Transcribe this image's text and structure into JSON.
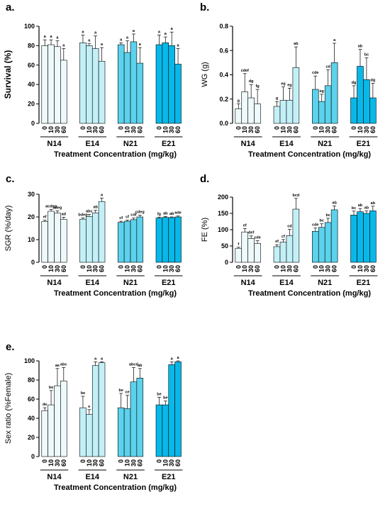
{
  "colors": {
    "N14": "#edf9fb",
    "E14": "#c3f0f7",
    "N21": "#5cd2ec",
    "E21": "#08b8e8",
    "axis": "#000000"
  },
  "chart_data": [
    {
      "type": "bar",
      "panel": "a.",
      "ylabel": "Survival (%)",
      "xlabel": "Treatment Concentration (mg/kg)",
      "ylim": [
        0,
        100
      ],
      "yticks": [
        "0",
        "20",
        "40",
        "60",
        "80",
        "100"
      ],
      "groups": [
        "N14",
        "E14",
        "N21",
        "E21"
      ],
      "categories": [
        "0",
        "10",
        "30",
        "60"
      ],
      "series": [
        {
          "group": "N14",
          "values": [
            80,
            81,
            79,
            65
          ],
          "errors": [
            6,
            5,
            6,
            12
          ],
          "letters": [
            "a",
            "a",
            "a",
            "a"
          ]
        },
        {
          "group": "E14",
          "values": [
            83,
            80,
            77,
            64
          ],
          "errors": [
            8,
            2,
            13,
            14
          ],
          "letters": [
            "a",
            "a",
            "a",
            "a"
          ]
        },
        {
          "group": "N21",
          "values": [
            81,
            73,
            84,
            62
          ],
          "errors": [
            2,
            12,
            8,
            16
          ],
          "letters": [
            "a",
            "a",
            "a",
            "a"
          ]
        },
        {
          "group": "E21",
          "values": [
            81,
            83,
            80,
            61
          ],
          "errors": [
            10,
            6,
            14,
            16
          ],
          "letters": [
            "a",
            "a",
            "a",
            "a"
          ]
        }
      ]
    },
    {
      "type": "bar",
      "panel": "b.",
      "ylabel": "WG (g)",
      "xlabel": "Treatment Concentration (mg/kg)",
      "ylim": [
        0,
        0.8
      ],
      "yticks": [
        "0.0",
        "0.2",
        "0.4",
        "0.6",
        "0.8"
      ],
      "groups": [
        "N14",
        "E14",
        "N21",
        "E21"
      ],
      "categories": [
        "0",
        "10",
        "30",
        "60"
      ],
      "series": [
        {
          "group": "N14",
          "values": [
            0.12,
            0.26,
            0.21,
            0.16
          ],
          "errors": [
            0.04,
            0.15,
            0.11,
            0.12
          ],
          "letters": [
            "g",
            "cdef",
            "dg",
            "fg"
          ]
        },
        {
          "group": "E14",
          "values": [
            0.14,
            0.19,
            0.19,
            0.46
          ],
          "errors": [
            0.04,
            0.11,
            0.1,
            0.17
          ],
          "letters": [
            "g",
            "eg",
            "eg",
            "ab"
          ]
        },
        {
          "group": "N21",
          "values": [
            0.28,
            0.18,
            0.31,
            0.5
          ],
          "errors": [
            0.11,
            0.06,
            0.13,
            0.16
          ],
          "letters": [
            "cde",
            "eg",
            "cd",
            "a"
          ]
        },
        {
          "group": "E21",
          "values": [
            0.21,
            0.47,
            0.36,
            0.21
          ],
          "errors": [
            0.1,
            0.14,
            0.18,
            0.12
          ],
          "letters": [
            "dg",
            "ab",
            "bc",
            "dg"
          ]
        }
      ]
    },
    {
      "type": "bar",
      "panel": "c.",
      "ylabel": "SGR (%/day)",
      "xlabel": "Treatment Concentration (mg/kg)",
      "ylim": [
        0,
        30
      ],
      "yticks": [
        "0",
        "10",
        "20",
        "30"
      ],
      "groups": [
        "N14",
        "E14",
        "N21",
        "E21"
      ],
      "categories": [
        "0",
        "10",
        "30",
        "60"
      ],
      "series": [
        {
          "group": "N14",
          "values": [
            18.0,
            22.5,
            21.7,
            19.0
          ],
          "errors": [
            0.6,
            0.8,
            1.0,
            0.8
          ],
          "letters": [
            "ef",
            "acdeg",
            "adeg",
            "ad"
          ]
        },
        {
          "group": "E14",
          "values": [
            19.0,
            20.2,
            21.8,
            26.8
          ],
          "errors": [
            0.6,
            0.9,
            1.1,
            1.5
          ],
          "letters": [
            "bdeg",
            "abc",
            "ab",
            "a"
          ]
        },
        {
          "group": "N21",
          "values": [
            17.6,
            18.1,
            18.8,
            20.0
          ],
          "errors": [
            0.5,
            0.5,
            0.7,
            0.8
          ],
          "letters": [
            "cf",
            "cf",
            "cdf",
            "cdeg"
          ]
        },
        {
          "group": "E21",
          "values": [
            19.5,
            19.8,
            19.7,
            20.0
          ],
          "errors": [
            0.4,
            0.4,
            0.3,
            0.4
          ],
          "letters": [
            "fg",
            "ab",
            "ab",
            "ade"
          ]
        }
      ]
    },
    {
      "type": "bar",
      "panel": "d.",
      "ylabel": "FE (%)",
      "xlabel": "Treatment Concentration (mg/kg)",
      "ylim": [
        0,
        200
      ],
      "yticks": [
        "0",
        "50",
        "100",
        "150",
        "200"
      ],
      "groups": [
        "N14",
        "E14",
        "N21",
        "E21"
      ],
      "categories": [
        "0",
        "10",
        "30",
        "60"
      ],
      "series": [
        {
          "group": "N14",
          "values": [
            43,
            93,
            73,
            58
          ],
          "errors": [
            3,
            10,
            8,
            8
          ],
          "letters": [
            "f",
            "ef",
            "def",
            "cde"
          ]
        },
        {
          "group": "E14",
          "values": [
            48,
            62,
            82,
            163
          ],
          "errors": [
            6,
            8,
            19,
            33
          ],
          "letters": [
            "ef",
            "cf",
            "cd",
            "bcd"
          ]
        },
        {
          "group": "N21",
          "values": [
            95,
            107,
            122,
            161
          ],
          "errors": [
            10,
            11,
            13,
            12
          ],
          "letters": [
            "cde",
            "bc",
            "bc",
            "ab"
          ]
        },
        {
          "group": "E21",
          "values": [
            145,
            155,
            150,
            158
          ],
          "errors": [
            12,
            10,
            8,
            14
          ],
          "letters": [
            "bc",
            "ab",
            "ab",
            "ab"
          ]
        }
      ]
    },
    {
      "type": "bar",
      "panel": "e.",
      "ylabel": "Sex ratio (%Female)",
      "xlabel": "Treatment Concentration (mg/kg)",
      "ylim": [
        0,
        100
      ],
      "yticks": [
        "0",
        "20",
        "40",
        "60",
        "80",
        "100"
      ],
      "groups": [
        "N14",
        "E14",
        "N21",
        "E21"
      ],
      "categories": [
        "0",
        "10",
        "30",
        "60"
      ],
      "series": [
        {
          "group": "N14",
          "values": [
            48,
            54,
            74,
            79
          ],
          "errors": [
            3,
            15,
            18,
            14
          ],
          "letters": [
            "de",
            "be",
            "ae",
            "abc"
          ]
        },
        {
          "group": "E14",
          "values": [
            51,
            44,
            95,
            98
          ],
          "errors": [
            12,
            5,
            4,
            1
          ],
          "letters": [
            "be",
            "e",
            "a",
            "a"
          ]
        },
        {
          "group": "N21",
          "values": [
            51,
            50,
            78,
            82
          ],
          "errors": [
            15,
            14,
            15,
            10
          ],
          "letters": [
            "be",
            "ce",
            "abcd",
            "ab"
          ]
        },
        {
          "group": "E21",
          "values": [
            54,
            54,
            96,
            99
          ],
          "errors": [
            8,
            4,
            3,
            1
          ],
          "letters": [
            "be",
            "be",
            "a",
            "a"
          ]
        }
      ]
    }
  ]
}
